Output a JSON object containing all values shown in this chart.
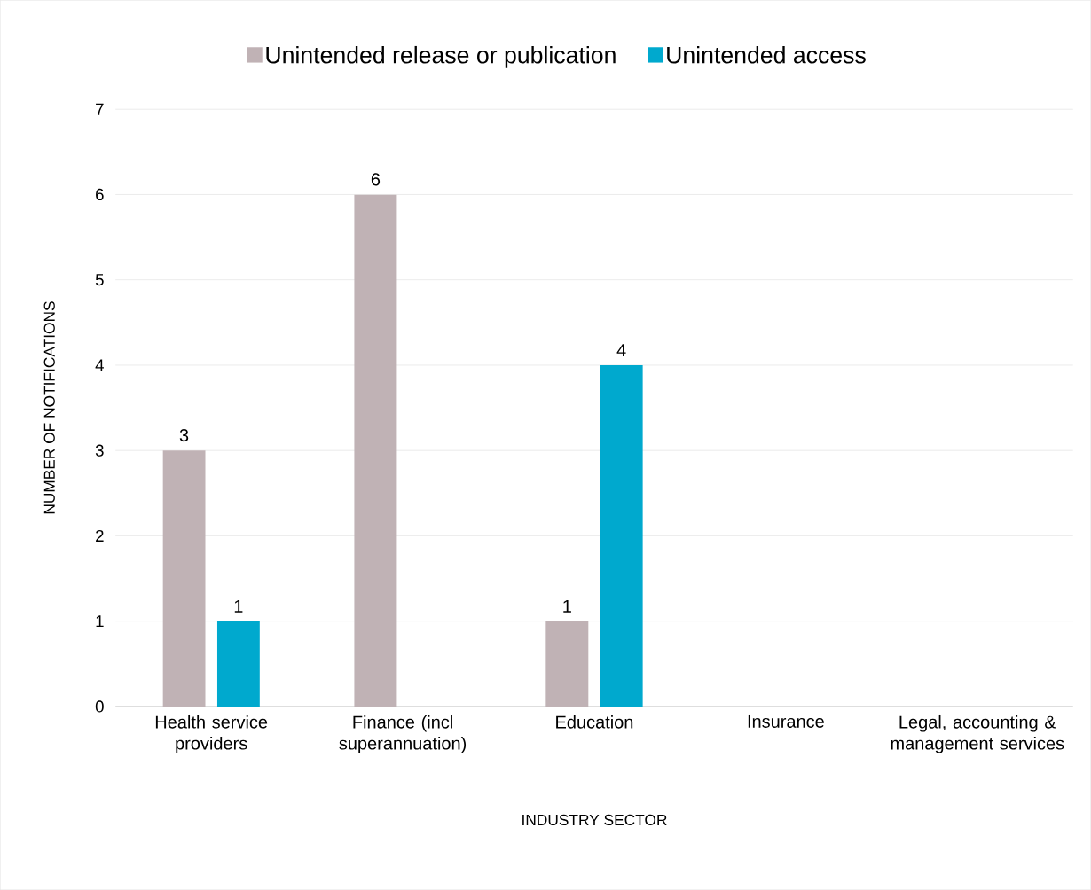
{
  "chart_data": {
    "type": "bar",
    "xlabel": "INDUSTRY SECTOR",
    "ylabel": "NUMBER OF NOTIFICATIONS",
    "categories": [
      "Health service providers",
      "Finance (incl superannuation)",
      "Education",
      "Insurance",
      "Legal, accounting & management services"
    ],
    "series": [
      {
        "name": "Unintended release or publication",
        "color": "#c0b2b5",
        "values": [
          3,
          6,
          1,
          0,
          0
        ],
        "value_labels": [
          "3",
          "6",
          "1",
          null,
          null
        ]
      },
      {
        "name": "Unintended access",
        "color": "#00a9ce",
        "values": [
          1,
          0,
          4,
          0,
          0
        ],
        "value_labels": [
          "1",
          null,
          "4",
          null,
          null
        ]
      }
    ],
    "ylim": [
      0,
      7
    ],
    "yticks": [
      0,
      1,
      2,
      3,
      4,
      5,
      6,
      7
    ],
    "grid": "y",
    "legend": "top"
  }
}
